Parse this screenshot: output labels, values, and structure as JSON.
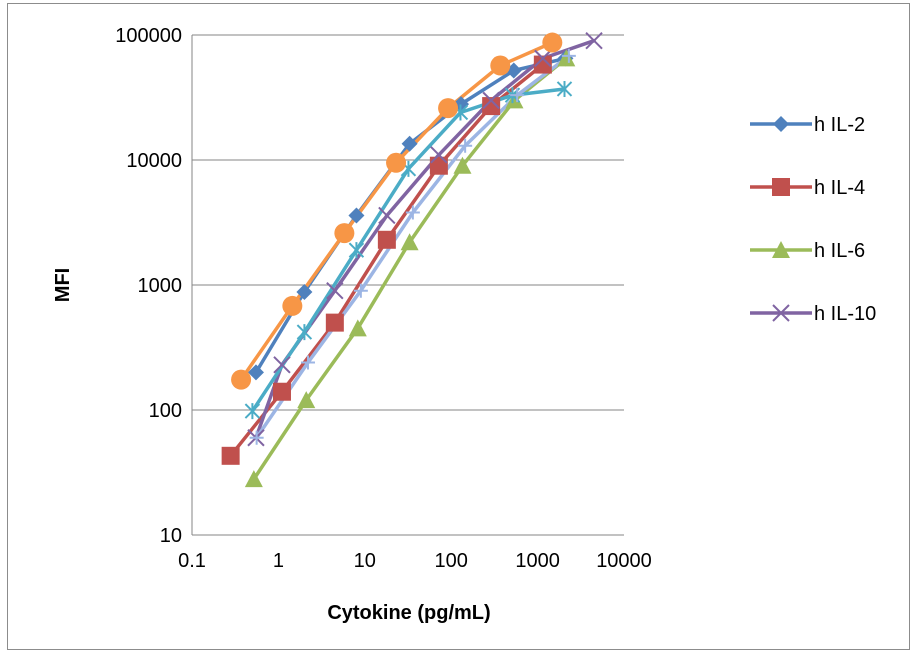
{
  "chart_data": {
    "type": "line",
    "xlabel": "Cytokine (pg/mL)",
    "ylabel": "MFI",
    "xscale": "log",
    "yscale": "log",
    "xlim": [
      0.1,
      10000
    ],
    "ylim": [
      10,
      100000
    ],
    "x_ticks": [
      "0.1",
      "1",
      "10",
      "100",
      "1000",
      "10000"
    ],
    "y_ticks": [
      "10",
      "100",
      "1000",
      "10000",
      "100000"
    ],
    "grid": "horizontal major",
    "legend_position": "right",
    "series": [
      {
        "name": "h IL-2",
        "color": "#4f81bd",
        "marker": "diamond",
        "in_legend": true,
        "x": [
          0.55,
          2.0,
          8.0,
          33,
          130,
          530,
          2100
        ],
        "y": [
          200,
          880,
          3600,
          13500,
          28000,
          52000,
          65000
        ]
      },
      {
        "name": "h IL-4",
        "color": "#c0504d",
        "marker": "square",
        "in_legend": true,
        "x": [
          0.28,
          1.1,
          4.5,
          18,
          72,
          290,
          1150
        ],
        "y": [
          43,
          140,
          500,
          2300,
          9000,
          27000,
          58000
        ]
      },
      {
        "name": "h IL-6",
        "color": "#9bbb59",
        "marker": "triangle",
        "in_legend": true,
        "x": [
          0.52,
          2.1,
          8.3,
          33,
          135,
          540,
          2150
        ],
        "y": [
          28,
          120,
          450,
          2200,
          9000,
          30000,
          65000
        ]
      },
      {
        "name": "h IL-10",
        "color": "#8064a2",
        "marker": "x",
        "in_legend": true,
        "x": [
          0.55,
          1.1,
          4.5,
          18,
          72,
          290,
          1150,
          4500
        ],
        "y": [
          60,
          230,
          900,
          3600,
          11000,
          30000,
          65000,
          90000
        ]
      },
      {
        "color": "#4bacc6",
        "marker": "star",
        "in_legend": false,
        "x": [
          0.5,
          2.0,
          8.0,
          32,
          128,
          512,
          2048
        ],
        "y": [
          98,
          420,
          1900,
          8500,
          24000,
          33000,
          37000
        ]
      },
      {
        "color": "#f79646",
        "marker": "circle",
        "in_legend": false,
        "x": [
          0.37,
          1.45,
          5.8,
          23,
          92,
          370,
          1480
        ],
        "y": [
          175,
          680,
          2600,
          9500,
          26000,
          57000,
          87000
        ]
      },
      {
        "color": "#9cb5e4",
        "marker": "plus",
        "in_legend": false,
        "x": [
          0.56,
          2.2,
          9.0,
          36,
          145,
          580,
          2300
        ],
        "y": [
          60,
          240,
          900,
          3800,
          13000,
          33000,
          68000
        ]
      }
    ]
  }
}
